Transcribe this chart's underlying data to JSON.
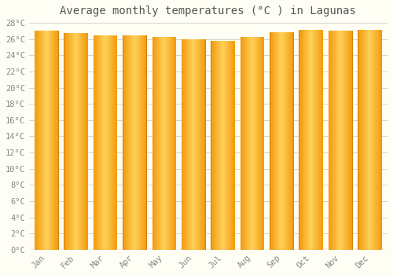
{
  "title": "Average monthly temperatures (°C ) in Lagunas",
  "months": [
    "Jan",
    "Feb",
    "Mar",
    "Apr",
    "May",
    "Jun",
    "Jul",
    "Aug",
    "Sep",
    "Oct",
    "Nov",
    "Dec"
  ],
  "temperatures": [
    27.0,
    26.7,
    26.5,
    26.5,
    26.3,
    26.0,
    25.8,
    26.3,
    26.8,
    27.1,
    27.0,
    27.1
  ],
  "bar_color_edge": "#E8930A",
  "bar_color_center": "#FFD060",
  "bar_color_mid": "#FFAB20",
  "background_color": "#FFFEF5",
  "grid_color": "#CCCCCC",
  "ylim_min": 0,
  "ylim_max": 28,
  "ytick_step": 2,
  "title_fontsize": 10,
  "tick_fontsize": 7.5,
  "tick_font_family": "monospace",
  "bar_width": 0.82
}
